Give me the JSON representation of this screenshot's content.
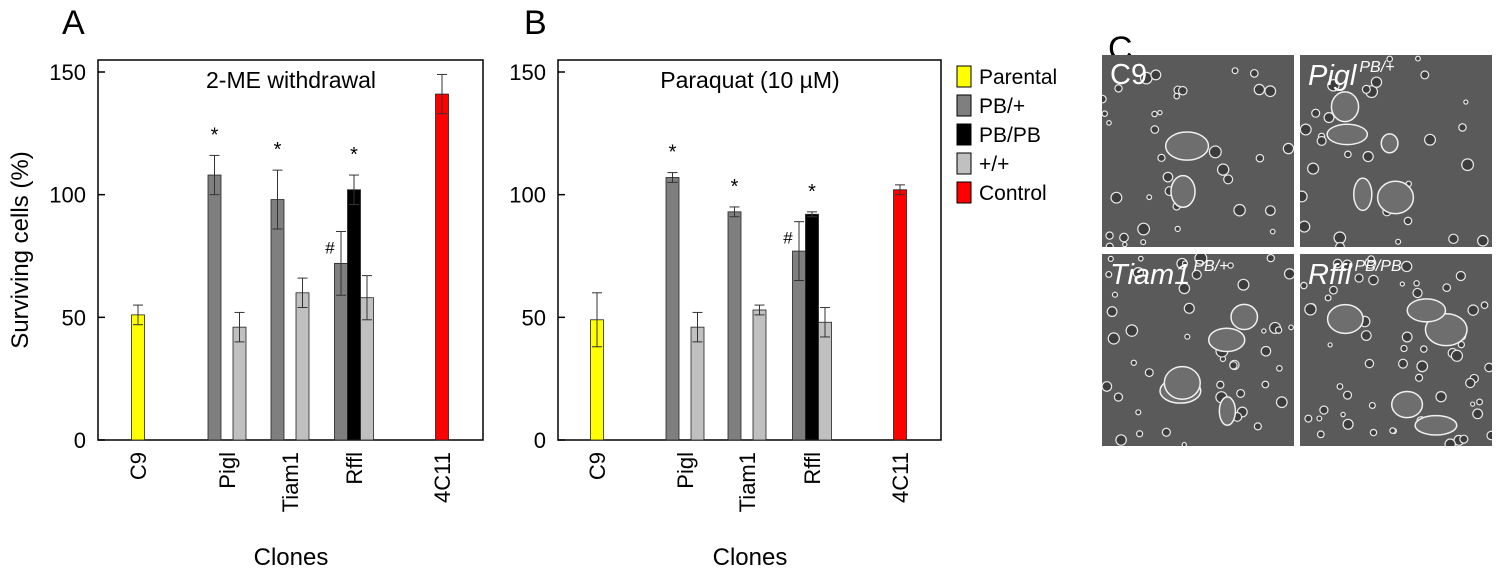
{
  "panel_labels": [
    "A",
    "B",
    "C"
  ],
  "legend": [
    {
      "label": "Parental",
      "color": "#ffff00"
    },
    {
      "label": "PB/+",
      "color": "#7f7f7f"
    },
    {
      "label": "PB/PB",
      "color": "#000000"
    },
    {
      "label": "+/+",
      "color": "#c0c0c0"
    },
    {
      "label": "Control",
      "color": "#ff0000"
    }
  ],
  "chart_data": [
    {
      "type": "bar",
      "panel": "A",
      "title": "2-ME withdrawal",
      "xlabel": "Clones",
      "ylabel": "Surviving cells (%)",
      "ylim": [
        0,
        150
      ],
      "yticks": [
        0,
        50,
        100,
        150
      ],
      "categories": [
        "C9",
        "Pigl",
        "Tiam1",
        "Rffl",
        "4C11"
      ],
      "bars": [
        {
          "category": "C9",
          "series": "Parental",
          "value": 51,
          "err": 4
        },
        {
          "category": "Pigl",
          "series": "PB/+",
          "value": 108,
          "err": 8
        },
        {
          "category": "Pigl",
          "series": "+/+",
          "value": 46,
          "err": 6
        },
        {
          "category": "Tiam1",
          "series": "PB/+",
          "value": 98,
          "err": 12
        },
        {
          "category": "Tiam1",
          "series": "+/+",
          "value": 60,
          "err": 6
        },
        {
          "category": "Rffl",
          "series": "PB/+",
          "value": 72,
          "err": 13
        },
        {
          "category": "Rffl",
          "series": "PB/PB",
          "value": 102,
          "err": 6
        },
        {
          "category": "Rffl",
          "series": "+/+",
          "value": 58,
          "err": 9
        },
        {
          "category": "4C11",
          "series": "Control",
          "value": 141,
          "err": 8
        }
      ],
      "annotations": [
        {
          "text": "*",
          "category": "Pigl",
          "series": "PB/+"
        },
        {
          "text": "*",
          "category": "Tiam1",
          "series": "PB/+"
        },
        {
          "text": "*",
          "category": "Rffl",
          "series": "PB/PB"
        },
        {
          "text": "#",
          "category": "Rffl",
          "series": "PB/+"
        }
      ]
    },
    {
      "type": "bar",
      "panel": "B",
      "title": "Paraquat (10 µM)",
      "xlabel": "Clones",
      "ylabel": "",
      "ylim": [
        0,
        150
      ],
      "yticks": [
        0,
        50,
        100,
        150
      ],
      "categories": [
        "C9",
        "Pigl",
        "Tiam1",
        "Rffl",
        "4C11"
      ],
      "bars": [
        {
          "category": "C9",
          "series": "Parental",
          "value": 49,
          "err": 11
        },
        {
          "category": "Pigl",
          "series": "PB/+",
          "value": 107,
          "err": 2
        },
        {
          "category": "Pigl",
          "series": "+/+",
          "value": 46,
          "err": 6
        },
        {
          "category": "Tiam1",
          "series": "PB/+",
          "value": 93,
          "err": 2
        },
        {
          "category": "Tiam1",
          "series": "+/+",
          "value": 53,
          "err": 2
        },
        {
          "category": "Rffl",
          "series": "PB/+",
          "value": 77,
          "err": 12
        },
        {
          "category": "Rffl",
          "series": "PB/PB",
          "value": 92,
          "err": 1
        },
        {
          "category": "Rffl",
          "series": "+/+",
          "value": 48,
          "err": 6
        },
        {
          "category": "4C11",
          "series": "Control",
          "value": 102,
          "err": 2
        }
      ],
      "annotations": [
        {
          "text": "*",
          "category": "Pigl",
          "series": "PB/+"
        },
        {
          "text": "*",
          "category": "Tiam1",
          "series": "PB/+"
        },
        {
          "text": "*",
          "category": "Rffl",
          "series": "PB/PB"
        },
        {
          "text": "#",
          "category": "Rffl",
          "series": "PB/+"
        }
      ]
    }
  ],
  "micrographs": [
    {
      "gene": "C9",
      "genotype": ""
    },
    {
      "gene": "Pigl",
      "genotype": "PB/+"
    },
    {
      "gene": "Tiam1",
      "genotype": "PB/+"
    },
    {
      "gene": "Rffl",
      "genotype": "PB/PB"
    }
  ]
}
